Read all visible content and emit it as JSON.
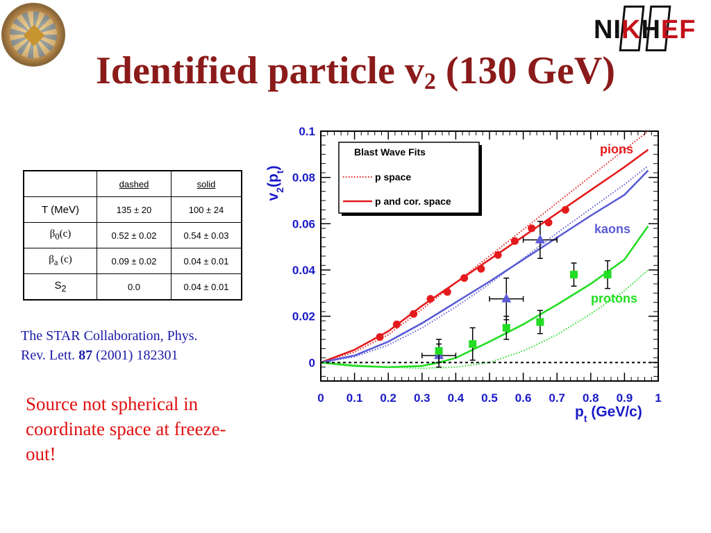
{
  "title": {
    "main": "Identified particle v",
    "sub": "2",
    "rest": " (130 GeV)"
  },
  "logos": {
    "right": {
      "n": "NI",
      "k": "K",
      "h": "H",
      "ef": "EF"
    }
  },
  "table": {
    "headers": [
      "",
      "dashed",
      "solid"
    ],
    "rows": [
      {
        "param": "T (MeV)",
        "param_sym": "",
        "param_sub": "",
        "param_rest": "",
        "dashed": "135 ± 20",
        "solid": "100 ± 24"
      },
      {
        "param": "",
        "param_sym": "β",
        "param_sub": "0",
        "param_rest": "(c)",
        "dashed": "0.52 ± 0.02",
        "solid": "0.54 ± 0.03"
      },
      {
        "param": "",
        "param_sym": "β",
        "param_sub": "a",
        "param_rest": " (c)",
        "dashed": "0.09 ± 0.02",
        "solid": "0.04 ± 0.01"
      },
      {
        "param": "",
        "param_sym": "S",
        "param_sub": "2",
        "param_rest": "",
        "dashed": "0.0",
        "solid": "0.04 ± 0.01"
      }
    ]
  },
  "citation": {
    "line1": "The STAR Collaboration, Phys.",
    "line2_pre": "Rev. Lett. ",
    "volume": "87",
    "line2_post": " (2001) 182301"
  },
  "conclusion": "Source not spherical in coordinate space at freeze-out!",
  "chart_data": {
    "type": "scatter",
    "xlabel": {
      "main": "p",
      "sub": "t",
      "rest": " (GeV/c)"
    },
    "ylabel": {
      "main": "v",
      "sub": "2",
      "mid": "(p",
      "sub2": "t",
      "rest": ")"
    },
    "xlim": [
      0,
      1
    ],
    "ylim": [
      -0.008,
      0.1
    ],
    "xticks": [
      "0",
      "0.1",
      "0.2",
      "0.3",
      "0.4",
      "0.5",
      "0.6",
      "0.7",
      "0.8",
      "0.9",
      "1"
    ],
    "yticks": [
      "0",
      "0.02",
      "0.04",
      "0.06",
      "0.08",
      "0.1"
    ],
    "legend": {
      "title": "Blast Wave Fits",
      "entries": [
        "p space",
        "p and cor. space"
      ],
      "position": "top-left"
    },
    "colors": {
      "pions": "#e41a1c",
      "kaons": "#5b5bd6",
      "protons": "#22dd22",
      "axis": "#1a1ac8"
    },
    "series": [
      {
        "name": "pions",
        "marker": "circle",
        "x": [
          0.175,
          0.225,
          0.275,
          0.325,
          0.375,
          0.425,
          0.475,
          0.525,
          0.575,
          0.625,
          0.675,
          0.725
        ],
        "y": [
          0.011,
          0.0165,
          0.021,
          0.0275,
          0.0305,
          0.0365,
          0.0405,
          0.0465,
          0.0525,
          0.058,
          0.0605,
          0.066
        ],
        "yerr": [
          0.0005,
          0.0005,
          0.0005,
          0.0005,
          0.0005,
          0.0005,
          0.0005,
          0.0005,
          0.0005,
          0.0005,
          0.0005,
          0.001
        ]
      },
      {
        "name": "kaons",
        "marker": "triangle",
        "x": [
          0.35,
          0.55,
          0.65
        ],
        "y": [
          0.003,
          0.0275,
          0.053
        ],
        "xerr": [
          0.05,
          0.05,
          0.05
        ],
        "yerr": [
          0.005,
          0.009,
          0.008
        ]
      },
      {
        "name": "protons",
        "marker": "square",
        "x": [
          0.35,
          0.45,
          0.55,
          0.65,
          0.75,
          0.85
        ],
        "y": [
          0.005,
          0.008,
          0.015,
          0.0175,
          0.038,
          0.038
        ],
        "xerr": [
          0,
          0,
          0,
          0,
          0,
          0
        ],
        "yerr": [
          0.005,
          0.007,
          0.005,
          0.005,
          0.005,
          0.006
        ]
      }
    ],
    "fits": [
      {
        "name": "pions",
        "style": "solid",
        "x": [
          0,
          0.1,
          0.2,
          0.3,
          0.4,
          0.5,
          0.6,
          0.7,
          0.8,
          0.9,
          0.97
        ],
        "y": [
          0,
          0.0055,
          0.0135,
          0.0245,
          0.0345,
          0.0445,
          0.0545,
          0.0645,
          0.0745,
          0.0845,
          0.092
        ]
      },
      {
        "name": "pions",
        "style": "dotted",
        "x": [
          0,
          0.1,
          0.2,
          0.3,
          0.4,
          0.5,
          0.6,
          0.7,
          0.8,
          0.9,
          0.97
        ],
        "y": [
          0,
          0.0045,
          0.012,
          0.023,
          0.0345,
          0.046,
          0.0575,
          0.069,
          0.0805,
          0.092,
          0.1
        ]
      },
      {
        "name": "kaons",
        "style": "solid",
        "x": [
          0,
          0.1,
          0.2,
          0.3,
          0.4,
          0.5,
          0.6,
          0.7,
          0.8,
          0.9,
          0.97
        ],
        "y": [
          0,
          0.003,
          0.009,
          0.017,
          0.026,
          0.035,
          0.0445,
          0.054,
          0.0635,
          0.0725,
          0.083
        ]
      },
      {
        "name": "kaons",
        "style": "dotted",
        "x": [
          0,
          0.1,
          0.2,
          0.3,
          0.4,
          0.5,
          0.6,
          0.7,
          0.8,
          0.9,
          0.97
        ],
        "y": [
          0,
          0.0025,
          0.0075,
          0.015,
          0.024,
          0.034,
          0.045,
          0.056,
          0.0665,
          0.077,
          0.085
        ]
      },
      {
        "name": "protons",
        "style": "solid",
        "x": [
          0,
          0.1,
          0.2,
          0.3,
          0.35,
          0.4,
          0.5,
          0.6,
          0.7,
          0.8,
          0.9,
          0.97
        ],
        "y": [
          0,
          -0.0015,
          -0.002,
          -0.0015,
          0,
          0.002,
          0.009,
          0.0165,
          0.025,
          0.034,
          0.0445,
          0.059
        ]
      },
      {
        "name": "protons",
        "style": "dotted",
        "x": [
          0,
          0.1,
          0.2,
          0.3,
          0.4,
          0.5,
          0.6,
          0.7,
          0.8,
          0.9,
          0.97
        ],
        "y": [
          0,
          -0.001,
          -0.002,
          -0.0025,
          -0.002,
          0.0,
          0.005,
          0.012,
          0.021,
          0.031,
          0.04
        ]
      }
    ],
    "labels": [
      "pions",
      "kaons",
      "protons"
    ]
  }
}
